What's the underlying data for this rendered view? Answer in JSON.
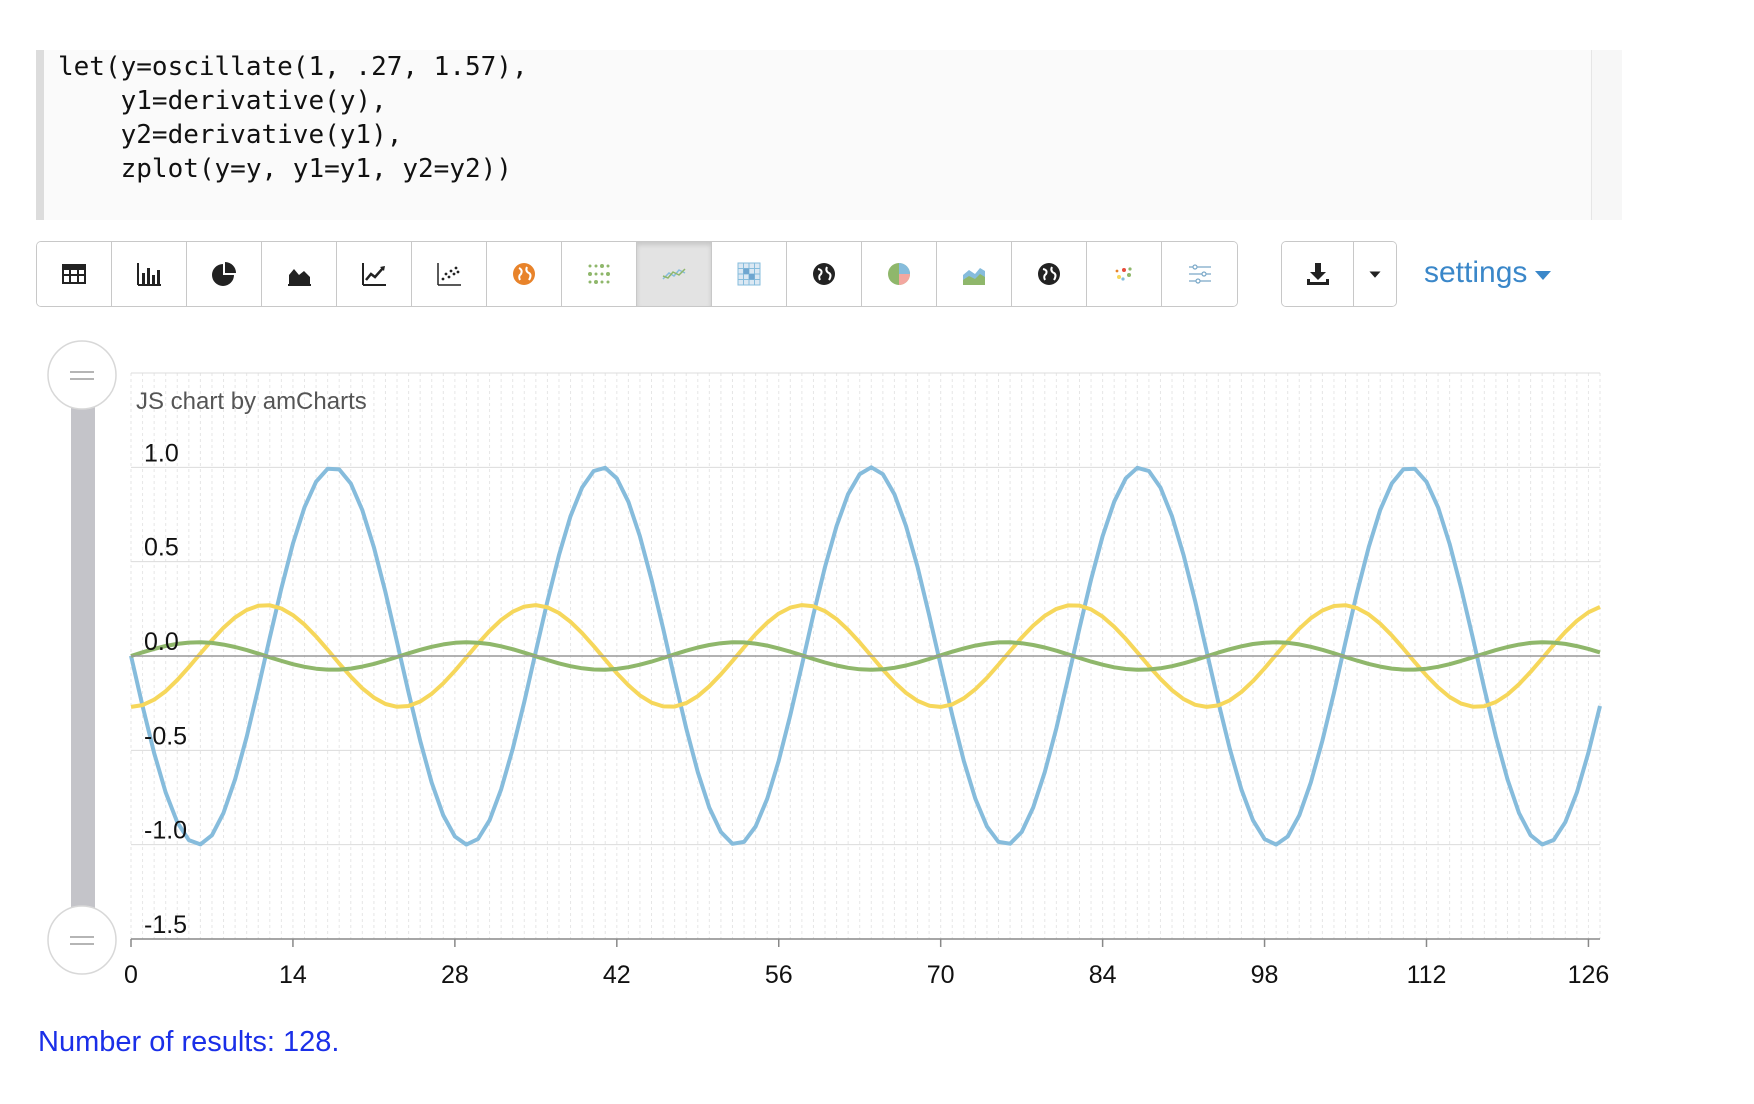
{
  "editor": {
    "lines": [
      "let(y=oscillate(1, .27, 1.57),",
      "    y1=derivative(y),",
      "    y2=derivative(y1),",
      "    zplot(y=y, y1=y1, y2=y2))"
    ]
  },
  "toolbar": {
    "buttons": [
      {
        "name": "table-icon"
      },
      {
        "name": "bar-chart-icon"
      },
      {
        "name": "pie-chart-icon"
      },
      {
        "name": "area-chart-icon"
      },
      {
        "name": "line-chart-icon"
      },
      {
        "name": "scatter-chart-icon"
      },
      {
        "name": "globe-orange-icon"
      },
      {
        "name": "dot-grid-icon"
      },
      {
        "name": "multi-line-icon",
        "active": true
      },
      {
        "name": "heatmap-icon"
      },
      {
        "name": "globe-icon"
      },
      {
        "name": "pie-color-icon"
      },
      {
        "name": "stacked-area-icon"
      },
      {
        "name": "globe-dark-icon"
      },
      {
        "name": "colored-scatter-icon"
      },
      {
        "name": "sliders-icon"
      }
    ],
    "download_icon": "download-icon",
    "settings_label": "settings"
  },
  "chart_data": {
    "type": "line",
    "credit": "JS chart by amCharts",
    "x_ticks": [
      "0",
      "14",
      "28",
      "42",
      "56",
      "70",
      "84",
      "98",
      "112",
      "126"
    ],
    "y_ticks": [
      "1.0",
      "0.5",
      "0.0",
      "-0.5",
      "-1.0",
      "-1.5"
    ],
    "xlim": [
      0,
      127
    ],
    "ylim": [
      -1.5,
      1.5
    ],
    "series": [
      {
        "key": "y",
        "formula": "cos(0.27*x + 1.57)",
        "color": "#86bcdc",
        "points": 128
      },
      {
        "key": "y1",
        "formula": "-0.27*sin(0.27*x + 1.57)",
        "color": "#f6d75b",
        "points": 128
      },
      {
        "key": "y2",
        "formula": "-0.0729*cos(0.27*x + 1.57)",
        "color": "#8fb76b",
        "points": 128
      }
    ],
    "grid": true
  },
  "footer": {
    "results_text": "Number of results: 128."
  }
}
